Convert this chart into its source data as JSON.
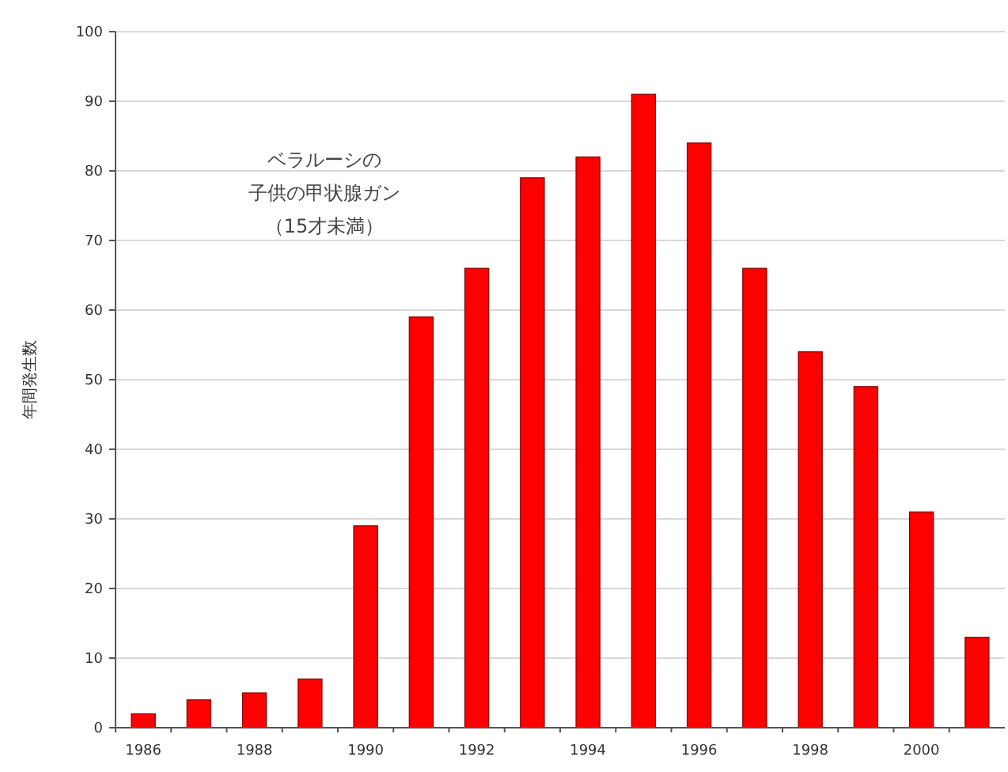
{
  "chart_data": {
    "type": "bar",
    "ylabel": "年間発生数",
    "annotations": [
      "ベラルーシの",
      "子供の甲状腺ガン",
      "（15才未満）"
    ],
    "categories": [
      "1986",
      null,
      "1988",
      null,
      "1990",
      null,
      "1992",
      null,
      "1994",
      null,
      "1996",
      null,
      "1998",
      null,
      "2000",
      null
    ],
    "values": [
      2,
      4,
      5,
      7,
      29,
      59,
      66,
      79,
      82,
      91,
      84,
      66,
      54,
      49,
      31,
      13
    ],
    "color": "#ff0000",
    "ylim": [
      0,
      100
    ],
    "yticks": [
      0,
      10,
      20,
      30,
      40,
      50,
      60,
      70,
      80,
      90,
      100
    ],
    "grid": "y"
  }
}
